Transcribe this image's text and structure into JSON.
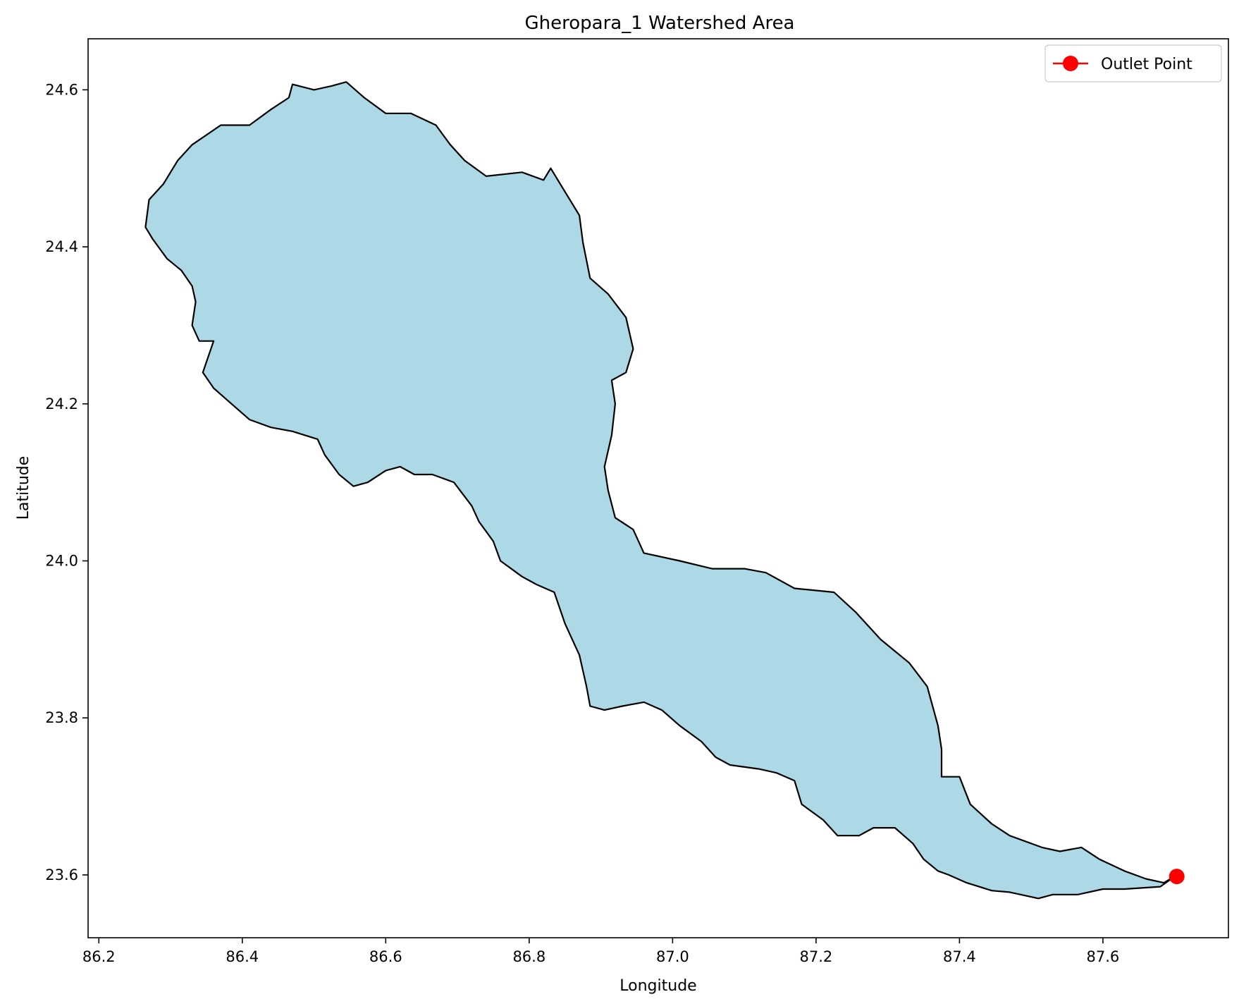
{
  "chart_data": {
    "type": "map",
    "title": "Gheropara_1 Watershed Area",
    "xlabel": "Longitude",
    "ylabel": "Latitude",
    "xlim": [
      86.185,
      87.775
    ],
    "ylim": [
      23.52,
      24.665
    ],
    "x_ticks": [
      "86.2",
      "86.4",
      "86.6",
      "86.8",
      "87.0",
      "87.2",
      "87.4",
      "87.6"
    ],
    "x_tick_values": [
      86.2,
      86.4,
      86.6,
      86.8,
      87.0,
      87.2,
      87.4,
      87.6
    ],
    "y_ticks": [
      "23.6",
      "23.8",
      "24.0",
      "24.2",
      "24.4",
      "24.6"
    ],
    "y_tick_values": [
      23.6,
      23.8,
      24.0,
      24.2,
      24.4,
      24.6
    ],
    "grid": false,
    "legend_position": "top-right",
    "watershed": {
      "fill_color": "#add8e6",
      "edge_color": "#000000",
      "boundary": [
        [
          86.265,
          24.425
        ],
        [
          86.27,
          24.46
        ],
        [
          86.29,
          24.48
        ],
        [
          86.31,
          24.51
        ],
        [
          86.33,
          24.53
        ],
        [
          86.37,
          24.555
        ],
        [
          86.41,
          24.555
        ],
        [
          86.44,
          24.575
        ],
        [
          86.465,
          24.59
        ],
        [
          86.47,
          24.607
        ],
        [
          86.5,
          24.6
        ],
        [
          86.525,
          24.605
        ],
        [
          86.545,
          24.61
        ],
        [
          86.57,
          24.59
        ],
        [
          86.6,
          24.57
        ],
        [
          86.635,
          24.57
        ],
        [
          86.67,
          24.555
        ],
        [
          86.69,
          24.53
        ],
        [
          86.71,
          24.51
        ],
        [
          86.74,
          24.49
        ],
        [
          86.79,
          24.495
        ],
        [
          86.82,
          24.485
        ],
        [
          86.83,
          24.5
        ],
        [
          86.85,
          24.47
        ],
        [
          86.87,
          24.44
        ],
        [
          86.875,
          24.405
        ],
        [
          86.885,
          24.36
        ],
        [
          86.91,
          24.34
        ],
        [
          86.935,
          24.31
        ],
        [
          86.945,
          24.27
        ],
        [
          86.935,
          24.24
        ],
        [
          86.915,
          24.23
        ],
        [
          86.92,
          24.2
        ],
        [
          86.915,
          24.16
        ],
        [
          86.905,
          24.12
        ],
        [
          86.91,
          24.09
        ],
        [
          86.92,
          24.055
        ],
        [
          86.945,
          24.04
        ],
        [
          86.96,
          24.01
        ],
        [
          87.01,
          24.0
        ],
        [
          87.055,
          23.99
        ],
        [
          87.1,
          23.99
        ],
        [
          87.13,
          23.985
        ],
        [
          87.17,
          23.965
        ],
        [
          87.225,
          23.96
        ],
        [
          87.255,
          23.935
        ],
        [
          87.29,
          23.9
        ],
        [
          87.33,
          23.87
        ],
        [
          87.355,
          23.84
        ],
        [
          87.37,
          23.79
        ],
        [
          87.375,
          23.76
        ],
        [
          87.375,
          23.725
        ],
        [
          87.4,
          23.725
        ],
        [
          87.415,
          23.69
        ],
        [
          87.445,
          23.665
        ],
        [
          87.47,
          23.65
        ],
        [
          87.515,
          23.635
        ],
        [
          87.54,
          23.63
        ],
        [
          87.57,
          23.635
        ],
        [
          87.595,
          23.62
        ],
        [
          87.63,
          23.605
        ],
        [
          87.66,
          23.595
        ],
        [
          87.685,
          23.59
        ],
        [
          87.7,
          23.598
        ],
        [
          87.68,
          23.585
        ],
        [
          87.63,
          23.582
        ],
        [
          87.6,
          23.582
        ],
        [
          87.565,
          23.575
        ],
        [
          87.53,
          23.575
        ],
        [
          87.51,
          23.57
        ],
        [
          87.47,
          23.578
        ],
        [
          87.445,
          23.58
        ],
        [
          87.41,
          23.59
        ],
        [
          87.385,
          23.6
        ],
        [
          87.37,
          23.605
        ],
        [
          87.35,
          23.62
        ],
        [
          87.335,
          23.64
        ],
        [
          87.31,
          23.66
        ],
        [
          87.28,
          23.66
        ],
        [
          87.26,
          23.65
        ],
        [
          87.23,
          23.65
        ],
        [
          87.21,
          23.67
        ],
        [
          87.18,
          23.69
        ],
        [
          87.17,
          23.72
        ],
        [
          87.145,
          23.73
        ],
        [
          87.12,
          23.735
        ],
        [
          87.08,
          23.74
        ],
        [
          87.06,
          23.75
        ],
        [
          87.04,
          23.77
        ],
        [
          87.01,
          23.79
        ],
        [
          86.985,
          23.81
        ],
        [
          86.96,
          23.82
        ],
        [
          86.93,
          23.815
        ],
        [
          86.905,
          23.81
        ],
        [
          86.885,
          23.815
        ],
        [
          86.88,
          23.84
        ],
        [
          86.87,
          23.88
        ],
        [
          86.85,
          23.92
        ],
        [
          86.835,
          23.96
        ],
        [
          86.81,
          23.97
        ],
        [
          86.79,
          23.98
        ],
        [
          86.76,
          24.0
        ],
        [
          86.75,
          24.025
        ],
        [
          86.73,
          24.05
        ],
        [
          86.72,
          24.07
        ],
        [
          86.695,
          24.1
        ],
        [
          86.665,
          24.11
        ],
        [
          86.64,
          24.11
        ],
        [
          86.62,
          24.12
        ],
        [
          86.6,
          24.115
        ],
        [
          86.575,
          24.1
        ],
        [
          86.555,
          24.095
        ],
        [
          86.535,
          24.11
        ],
        [
          86.515,
          24.135
        ],
        [
          86.505,
          24.155
        ],
        [
          86.47,
          24.165
        ],
        [
          86.44,
          24.17
        ],
        [
          86.41,
          24.18
        ],
        [
          86.385,
          24.2
        ],
        [
          86.36,
          24.22
        ],
        [
          86.345,
          24.24
        ],
        [
          86.36,
          24.28
        ],
        [
          86.34,
          24.28
        ],
        [
          86.33,
          24.3
        ],
        [
          86.335,
          24.33
        ],
        [
          86.33,
          24.35
        ],
        [
          86.315,
          24.37
        ],
        [
          86.295,
          24.385
        ],
        [
          86.275,
          24.41
        ]
      ]
    },
    "series": [
      {
        "name": "Outlet Point",
        "type": "scatter",
        "color": "#ff0000",
        "x": [
          87.703
        ],
        "y": [
          23.598
        ]
      }
    ]
  }
}
